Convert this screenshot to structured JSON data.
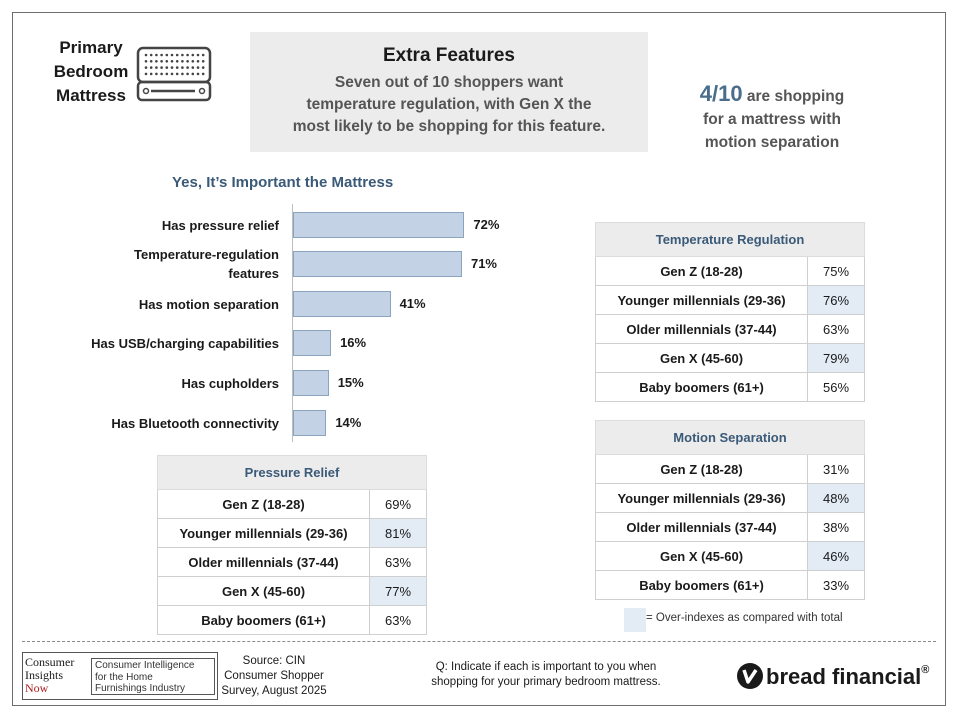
{
  "header": {
    "product_title": [
      "Primary",
      "Bedroom",
      "Mattress"
    ],
    "hero_title": "Extra Features",
    "hero_subtitle": [
      "Seven out of 10 shoppers want",
      "temperature regulation, with Gen X the",
      "most likely to be shopping for this feature."
    ],
    "stat_value": "4/10",
    "stat_text_1": " are shopping",
    "stat_text_2": "for a mattress with",
    "stat_text_3": "motion separation"
  },
  "chart_data": {
    "type": "bar",
    "orientation": "horizontal",
    "title": "Yes, It’s Important the Mattress",
    "categories": [
      "Has pressure relief",
      "Temperature-regulation features",
      "Has motion separation",
      "Has USB/charging capabilities",
      "Has cupholders",
      "Has Bluetooth connectivity"
    ],
    "category_lines": [
      [
        "Has pressure relief"
      ],
      [
        "Temperature-regulation",
        "features"
      ],
      [
        "Has motion separation"
      ],
      [
        "Has USB/charging capabilities"
      ],
      [
        "Has cupholders"
      ],
      [
        "Has Bluetooth connectivity"
      ]
    ],
    "values": [
      72,
      71,
      41,
      16,
      15,
      14
    ],
    "value_labels": [
      "72%",
      "71%",
      "41%",
      "16%",
      "15%",
      "14%"
    ],
    "xlim": [
      0,
      100
    ],
    "bar_color": "#c3d3e5",
    "grid": false
  },
  "tables": {
    "temperature": {
      "title": "Temperature Regulation",
      "rows": [
        {
          "group": "Gen Z (18-28)",
          "value": "75%",
          "over": false
        },
        {
          "group": "Younger millennials (29-36)",
          "value": "76%",
          "over": true
        },
        {
          "group": "Older millennials (37-44)",
          "value": "63%",
          "over": false
        },
        {
          "group": "Gen X (45-60)",
          "value": "79%",
          "over": true
        },
        {
          "group": "Baby boomers (61+)",
          "value": "56%",
          "over": false
        }
      ]
    },
    "motion": {
      "title": "Motion Separation",
      "rows": [
        {
          "group": "Gen Z (18-28)",
          "value": "31%",
          "over": false
        },
        {
          "group": "Younger millennials (29-36)",
          "value": "48%",
          "over": true
        },
        {
          "group": "Older millennials (37-44)",
          "value": "38%",
          "over": false
        },
        {
          "group": "Gen X (45-60)",
          "value": "46%",
          "over": true
        },
        {
          "group": "Baby boomers (61+)",
          "value": "33%",
          "over": false
        }
      ]
    },
    "pressure": {
      "title": "Pressure Relief",
      "rows": [
        {
          "group": "Gen Z (18-28)",
          "value": "69%",
          "over": false
        },
        {
          "group": "Younger millennials (29-36)",
          "value": "81%",
          "over": true
        },
        {
          "group": "Older millennials (37-44)",
          "value": "63%",
          "over": false
        },
        {
          "group": "Gen X (45-60)",
          "value": "77%",
          "over": true
        },
        {
          "group": "Baby boomers (61+)",
          "value": "63%",
          "over": false
        }
      ]
    }
  },
  "legend": {
    "text": "= Over-indexes as compared with total",
    "highlight_color": "#e3ebf5"
  },
  "footer": {
    "cin_logo": [
      "Consumer",
      "Insights",
      "Now"
    ],
    "cin_tagline": [
      "Consumer Intelligence",
      "for the Home",
      "Furnishings Industry"
    ],
    "source": [
      "Source: CIN",
      "Consumer Shopper",
      "Survey, August 2025"
    ],
    "question": [
      "Q:  Indicate if each is important to you when",
      "shopping for your primary bedroom mattress."
    ],
    "brand": "bread financial",
    "brand_mark": "®"
  },
  "icons": {
    "mattress": "mattress-icon",
    "bread": "bread-logo-icon"
  }
}
